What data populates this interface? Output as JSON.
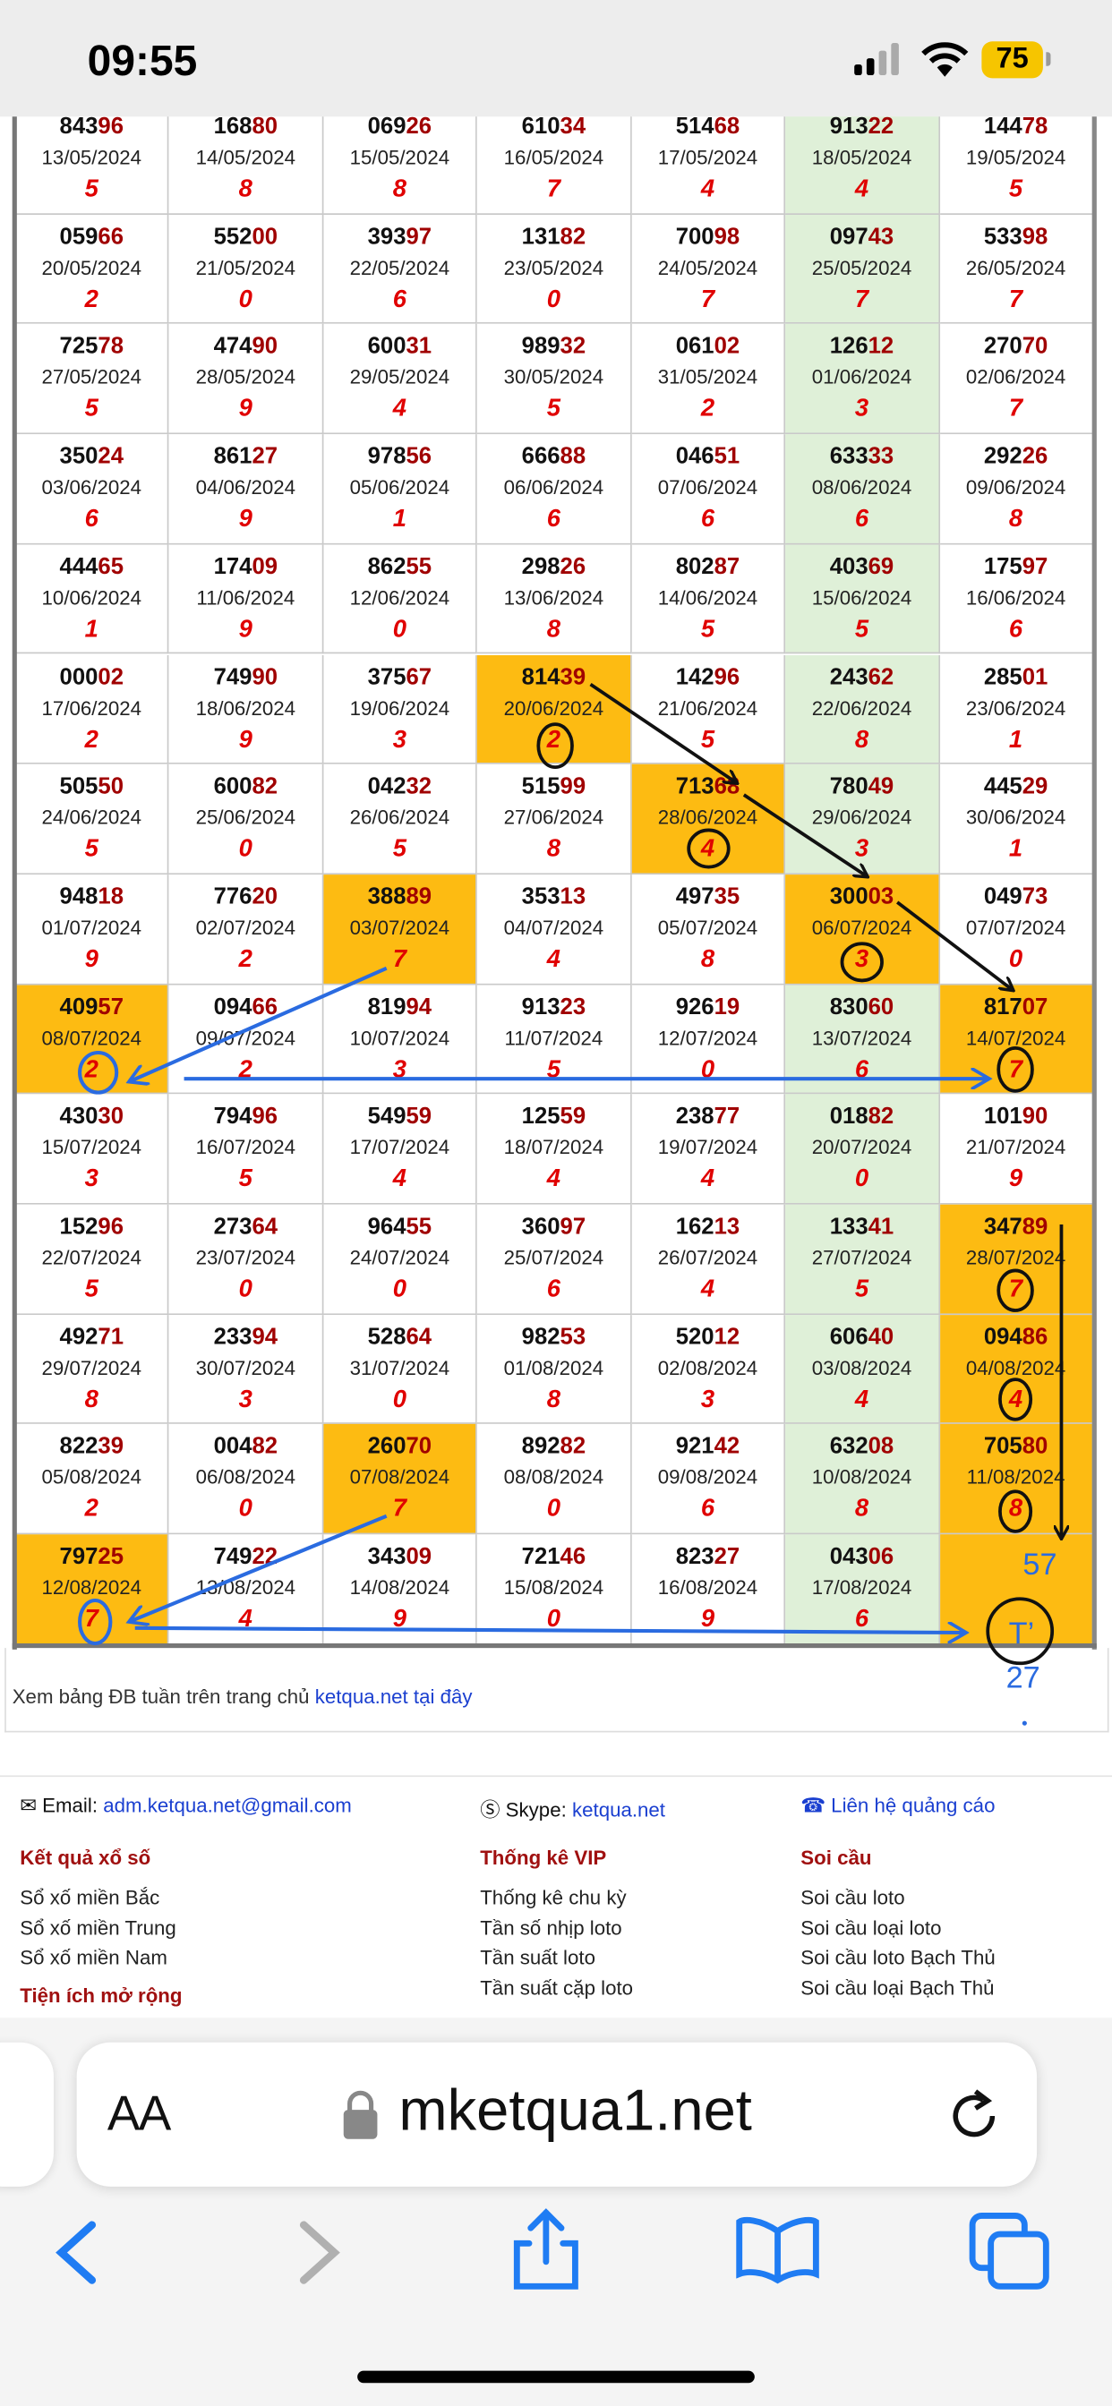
{
  "status": {
    "time": "09:55",
    "battery": "75"
  },
  "table": {
    "rows": [
      [
        {
          "a": "843",
          "b": "96",
          "date": "13/05/2024",
          "d": "5"
        },
        {
          "a": "168",
          "b": "80",
          "date": "14/05/2024",
          "d": "8"
        },
        {
          "a": "069",
          "b": "26",
          "date": "15/05/2024",
          "d": "8"
        },
        {
          "a": "610",
          "b": "34",
          "date": "16/05/2024",
          "d": "7"
        },
        {
          "a": "514",
          "b": "68",
          "date": "17/05/2024",
          "d": "4"
        },
        {
          "a": "913",
          "b": "22",
          "date": "18/05/2024",
          "d": "4"
        },
        {
          "a": "144",
          "b": "78",
          "date": "19/05/2024",
          "d": "5"
        }
      ],
      [
        {
          "a": "059",
          "b": "66",
          "date": "20/05/2024",
          "d": "2"
        },
        {
          "a": "552",
          "b": "00",
          "date": "21/05/2024",
          "d": "0"
        },
        {
          "a": "393",
          "b": "97",
          "date": "22/05/2024",
          "d": "6"
        },
        {
          "a": "131",
          "b": "82",
          "date": "23/05/2024",
          "d": "0"
        },
        {
          "a": "700",
          "b": "98",
          "date": "24/05/2024",
          "d": "7"
        },
        {
          "a": "097",
          "b": "43",
          "date": "25/05/2024",
          "d": "7"
        },
        {
          "a": "533",
          "b": "98",
          "date": "26/05/2024",
          "d": "7"
        }
      ],
      [
        {
          "a": "725",
          "b": "78",
          "date": "27/05/2024",
          "d": "5"
        },
        {
          "a": "474",
          "b": "90",
          "date": "28/05/2024",
          "d": "9"
        },
        {
          "a": "600",
          "b": "31",
          "date": "29/05/2024",
          "d": "4"
        },
        {
          "a": "989",
          "b": "32",
          "date": "30/05/2024",
          "d": "5"
        },
        {
          "a": "061",
          "b": "02",
          "date": "31/05/2024",
          "d": "2"
        },
        {
          "a": "126",
          "b": "12",
          "date": "01/06/2024",
          "d": "3"
        },
        {
          "a": "270",
          "b": "70",
          "date": "02/06/2024",
          "d": "7"
        }
      ],
      [
        {
          "a": "350",
          "b": "24",
          "date": "03/06/2024",
          "d": "6"
        },
        {
          "a": "861",
          "b": "27",
          "date": "04/06/2024",
          "d": "9"
        },
        {
          "a": "978",
          "b": "56",
          "date": "05/06/2024",
          "d": "1"
        },
        {
          "a": "666",
          "b": "88",
          "date": "06/06/2024",
          "d": "6"
        },
        {
          "a": "046",
          "b": "51",
          "date": "07/06/2024",
          "d": "6"
        },
        {
          "a": "633",
          "b": "33",
          "date": "08/06/2024",
          "d": "6"
        },
        {
          "a": "292",
          "b": "26",
          "date": "09/06/2024",
          "d": "8"
        }
      ],
      [
        {
          "a": "444",
          "b": "65",
          "date": "10/06/2024",
          "d": "1"
        },
        {
          "a": "174",
          "b": "09",
          "date": "11/06/2024",
          "d": "9"
        },
        {
          "a": "862",
          "b": "55",
          "date": "12/06/2024",
          "d": "0"
        },
        {
          "a": "298",
          "b": "26",
          "date": "13/06/2024",
          "d": "8"
        },
        {
          "a": "802",
          "b": "87",
          "date": "14/06/2024",
          "d": "5"
        },
        {
          "a": "403",
          "b": "69",
          "date": "15/06/2024",
          "d": "5"
        },
        {
          "a": "175",
          "b": "97",
          "date": "16/06/2024",
          "d": "6"
        }
      ],
      [
        {
          "a": "000",
          "b": "02",
          "date": "17/06/2024",
          "d": "2"
        },
        {
          "a": "749",
          "b": "90",
          "date": "18/06/2024",
          "d": "9"
        },
        {
          "a": "375",
          "b": "67",
          "date": "19/06/2024",
          "d": "3"
        },
        {
          "a": "814",
          "b": "39",
          "date": "20/06/2024",
          "d": "2",
          "hl": true
        },
        {
          "a": "142",
          "b": "96",
          "date": "21/06/2024",
          "d": "5"
        },
        {
          "a": "243",
          "b": "62",
          "date": "22/06/2024",
          "d": "8"
        },
        {
          "a": "285",
          "b": "01",
          "date": "23/06/2024",
          "d": "1"
        }
      ],
      [
        {
          "a": "505",
          "b": "50",
          "date": "24/06/2024",
          "d": "5"
        },
        {
          "a": "600",
          "b": "82",
          "date": "25/06/2024",
          "d": "0"
        },
        {
          "a": "042",
          "b": "32",
          "date": "26/06/2024",
          "d": "5"
        },
        {
          "a": "515",
          "b": "99",
          "date": "27/06/2024",
          "d": "8"
        },
        {
          "a": "713",
          "b": "68",
          "date": "28/06/2024",
          "d": "4",
          "hl": true
        },
        {
          "a": "780",
          "b": "49",
          "date": "29/06/2024",
          "d": "3"
        },
        {
          "a": "445",
          "b": "29",
          "date": "30/06/2024",
          "d": "1"
        }
      ],
      [
        {
          "a": "948",
          "b": "18",
          "date": "01/07/2024",
          "d": "9"
        },
        {
          "a": "776",
          "b": "20",
          "date": "02/07/2024",
          "d": "2"
        },
        {
          "a": "388",
          "b": "89",
          "date": "03/07/2024",
          "d": "7",
          "hl": true
        },
        {
          "a": "353",
          "b": "13",
          "date": "04/07/2024",
          "d": "4"
        },
        {
          "a": "497",
          "b": "35",
          "date": "05/07/2024",
          "d": "8"
        },
        {
          "a": "300",
          "b": "03",
          "date": "06/07/2024",
          "d": "3",
          "hl": true
        },
        {
          "a": "049",
          "b": "73",
          "date": "07/07/2024",
          "d": "0"
        }
      ],
      [
        {
          "a": "409",
          "b": "57",
          "date": "08/07/2024",
          "d": "2",
          "hl": true
        },
        {
          "a": "094",
          "b": "66",
          "date": "09/07/2024",
          "d": "2"
        },
        {
          "a": "819",
          "b": "94",
          "date": "10/07/2024",
          "d": "3"
        },
        {
          "a": "913",
          "b": "23",
          "date": "11/07/2024",
          "d": "5"
        },
        {
          "a": "926",
          "b": "19",
          "date": "12/07/2024",
          "d": "0"
        },
        {
          "a": "830",
          "b": "60",
          "date": "13/07/2024",
          "d": "6"
        },
        {
          "a": "817",
          "b": "07",
          "date": "14/07/2024",
          "d": "7",
          "hl": true
        }
      ],
      [
        {
          "a": "430",
          "b": "30",
          "date": "15/07/2024",
          "d": "3"
        },
        {
          "a": "794",
          "b": "96",
          "date": "16/07/2024",
          "d": "5"
        },
        {
          "a": "549",
          "b": "59",
          "date": "17/07/2024",
          "d": "4"
        },
        {
          "a": "125",
          "b": "59",
          "date": "18/07/2024",
          "d": "4"
        },
        {
          "a": "238",
          "b": "77",
          "date": "19/07/2024",
          "d": "4"
        },
        {
          "a": "018",
          "b": "82",
          "date": "20/07/2024",
          "d": "0"
        },
        {
          "a": "101",
          "b": "90",
          "date": "21/07/2024",
          "d": "9"
        }
      ],
      [
        {
          "a": "152",
          "b": "96",
          "date": "22/07/2024",
          "d": "5"
        },
        {
          "a": "273",
          "b": "64",
          "date": "23/07/2024",
          "d": "0"
        },
        {
          "a": "964",
          "b": "55",
          "date": "24/07/2024",
          "d": "0"
        },
        {
          "a": "360",
          "b": "97",
          "date": "25/07/2024",
          "d": "6"
        },
        {
          "a": "162",
          "b": "13",
          "date": "26/07/2024",
          "d": "4"
        },
        {
          "a": "133",
          "b": "41",
          "date": "27/07/2024",
          "d": "5"
        },
        {
          "a": "347",
          "b": "89",
          "date": "28/07/2024",
          "d": "7",
          "hl": true
        }
      ],
      [
        {
          "a": "492",
          "b": "71",
          "date": "29/07/2024",
          "d": "8"
        },
        {
          "a": "233",
          "b": "94",
          "date": "30/07/2024",
          "d": "3"
        },
        {
          "a": "528",
          "b": "64",
          "date": "31/07/2024",
          "d": "0"
        },
        {
          "a": "982",
          "b": "53",
          "date": "01/08/2024",
          "d": "8"
        },
        {
          "a": "520",
          "b": "12",
          "date": "02/08/2024",
          "d": "3"
        },
        {
          "a": "606",
          "b": "40",
          "date": "03/08/2024",
          "d": "4"
        },
        {
          "a": "094",
          "b": "86",
          "date": "04/08/2024",
          "d": "4",
          "hl": true
        }
      ],
      [
        {
          "a": "822",
          "b": "39",
          "date": "05/08/2024",
          "d": "2"
        },
        {
          "a": "004",
          "b": "82",
          "date": "06/08/2024",
          "d": "0"
        },
        {
          "a": "260",
          "b": "70",
          "date": "07/08/2024",
          "d": "7",
          "hl": true
        },
        {
          "a": "892",
          "b": "82",
          "date": "08/08/2024",
          "d": "0"
        },
        {
          "a": "921",
          "b": "42",
          "date": "09/08/2024",
          "d": "6"
        },
        {
          "a": "632",
          "b": "08",
          "date": "10/08/2024",
          "d": "8"
        },
        {
          "a": "705",
          "b": "80",
          "date": "11/08/2024",
          "d": "8",
          "hl": true
        }
      ],
      [
        {
          "a": "797",
          "b": "25",
          "date": "12/08/2024",
          "d": "7",
          "hl": true
        },
        {
          "a": "749",
          "b": "22",
          "date": "13/08/2024",
          "d": "4"
        },
        {
          "a": "343",
          "b": "09",
          "date": "14/08/2024",
          "d": "9"
        },
        {
          "a": "721",
          "b": "46",
          "date": "15/08/2024",
          "d": "0"
        },
        {
          "a": "823",
          "b": "27",
          "date": "16/08/2024",
          "d": "9"
        },
        {
          "a": "043",
          "b": "06",
          "date": "17/08/2024",
          "d": "6"
        },
        {
          "hl": true
        }
      ]
    ]
  },
  "annotations": [
    "57",
    "T’",
    "27"
  ],
  "note": {
    "text": "Xem bảng ĐB tuần trên trang chủ",
    "link": "ketqua.net tại đây"
  },
  "contacts": {
    "email_label": "Email:",
    "email": "adm.ketqua.net@gmail.com",
    "skype_label": "Skype:",
    "skype": "ketqua.net",
    "ads": "Liên hệ quảng cáo"
  },
  "footer": [
    {
      "title": "Kết quả xổ số",
      "items": [
        "Sổ xố miền Bắc",
        "Sổ xố miền Trung",
        "Sổ xố miền Nam"
      ],
      "title2": "Tiện ích mở rộng"
    },
    {
      "title": "Thống kê VIP",
      "items": [
        "Thống kê chu kỳ",
        "Tần số nhịp loto",
        "Tần suất loto",
        "Tần suất cặp loto"
      ]
    },
    {
      "title": "Soi cầu",
      "items": [
        "Soi cầu loto",
        "Soi cầu loại loto",
        "Soi cầu loto Bạch Thủ",
        "Soi cầu loại Bạch Thủ"
      ]
    }
  ],
  "browser": {
    "text_size": "AA",
    "url": "mketqua1.net"
  }
}
